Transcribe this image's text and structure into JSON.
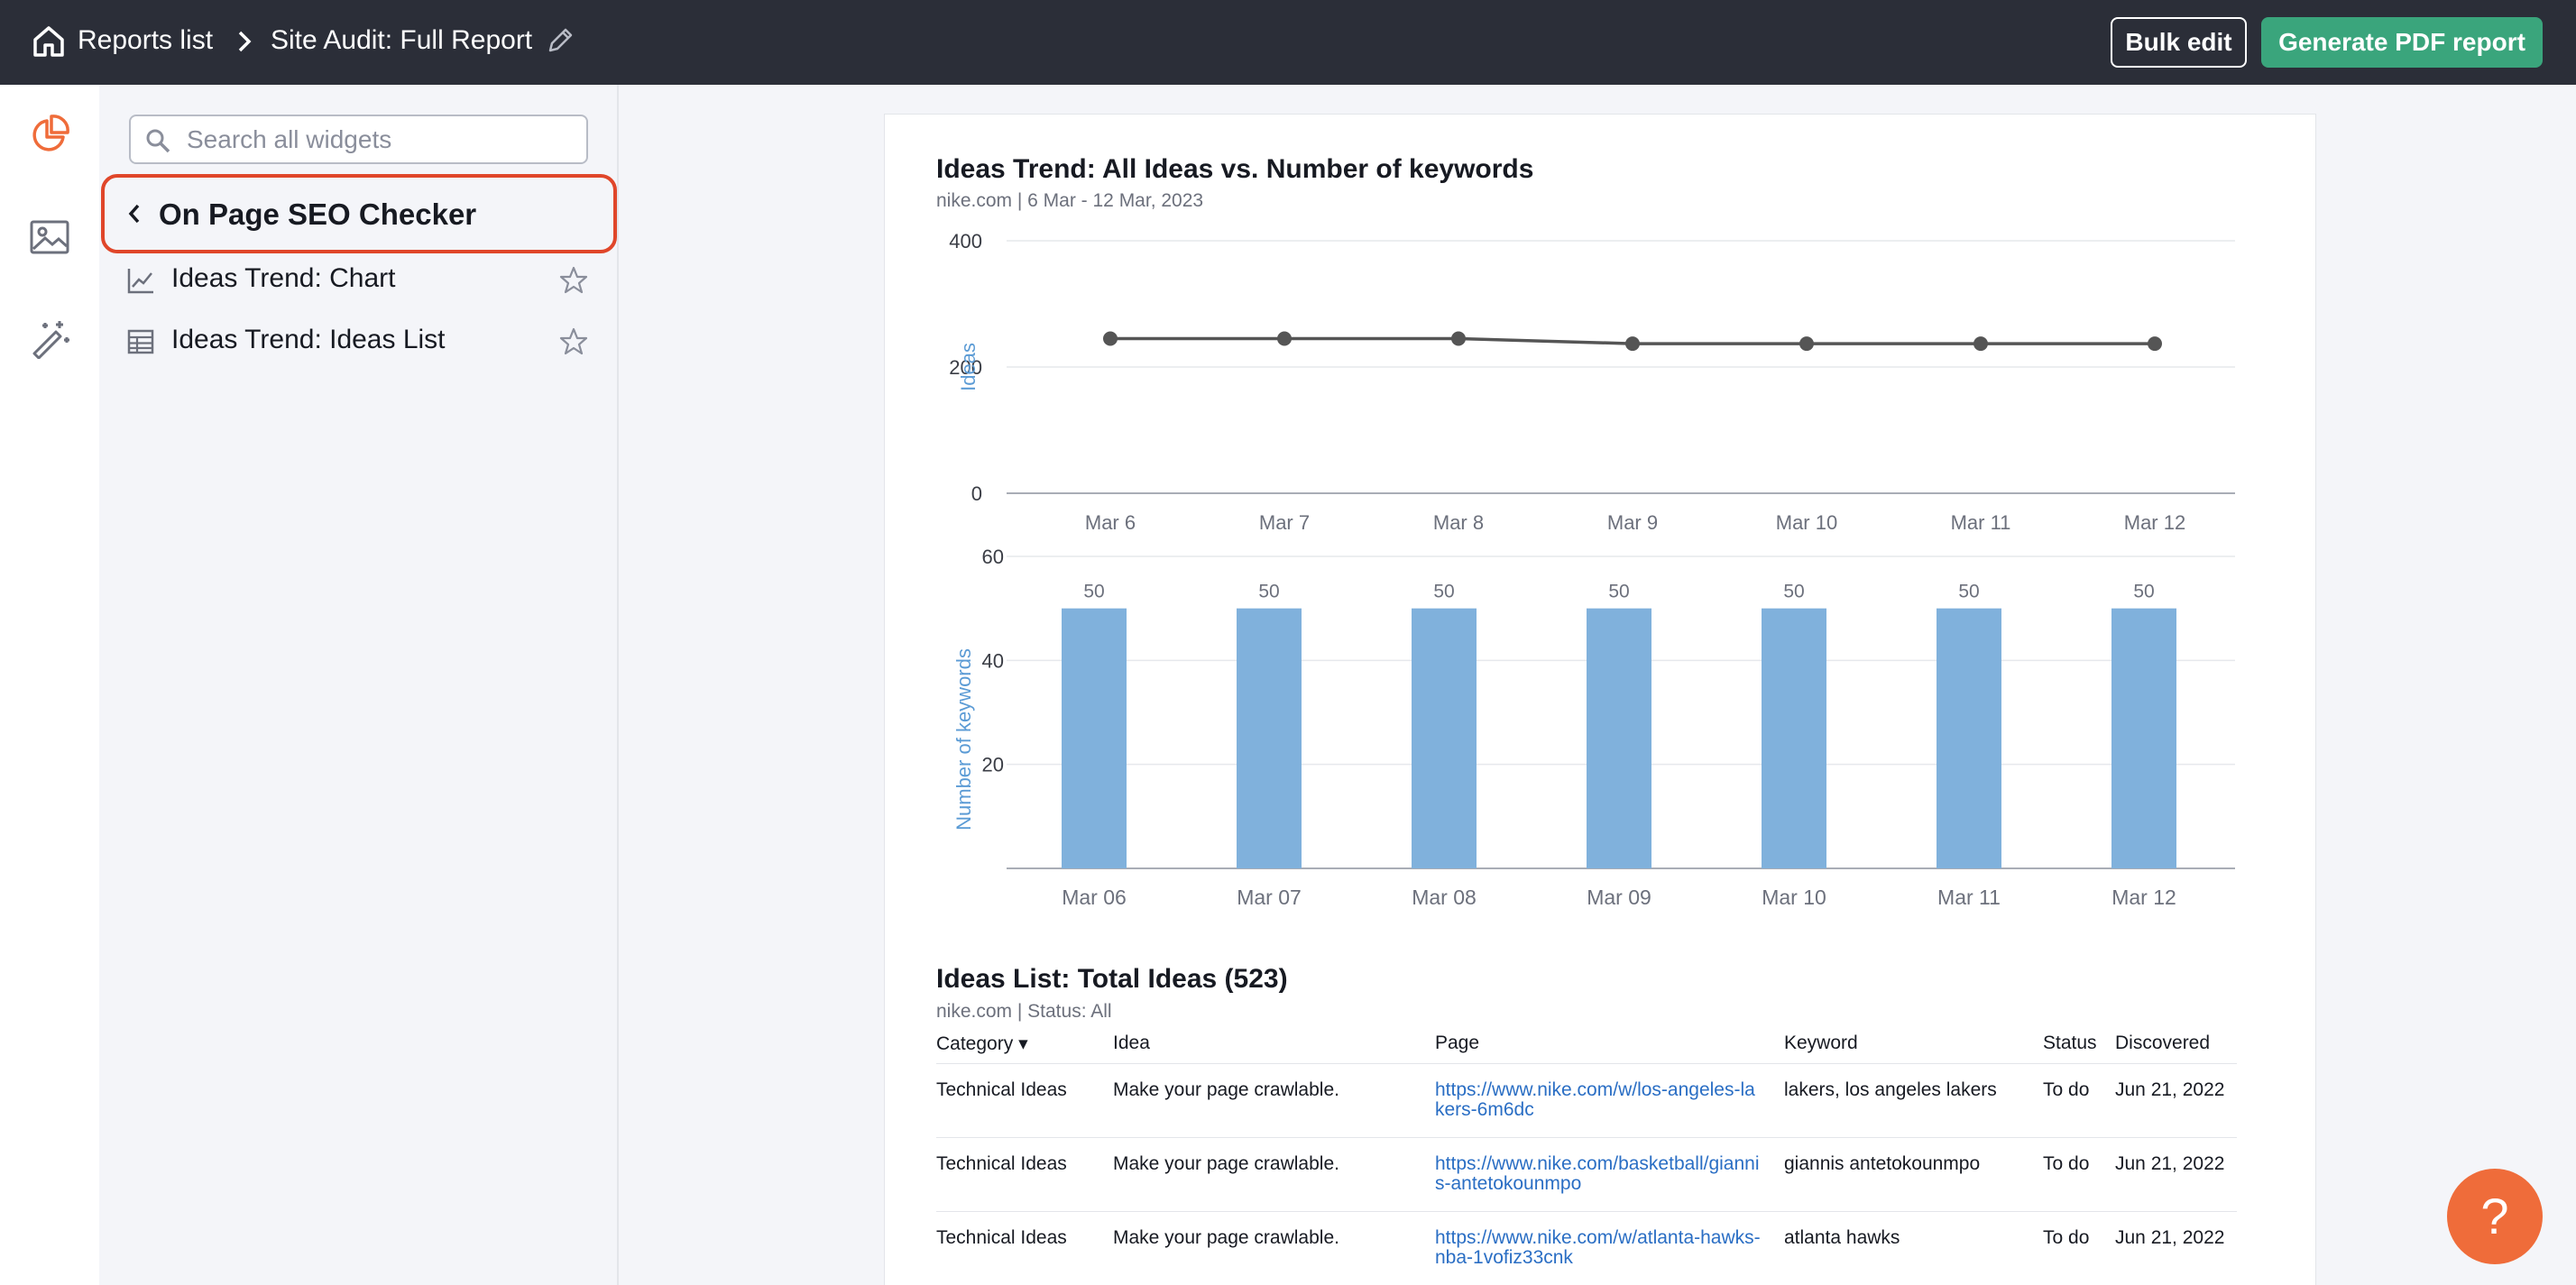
{
  "topbar": {
    "reports_list": "Reports list",
    "report_title": "Site Audit: Full Report",
    "bulk_edit": "Bulk edit",
    "generate_pdf": "Generate PDF report"
  },
  "sidebar": {
    "search_placeholder": "Search all widgets",
    "section_title": "On Page SEO Checker",
    "items": [
      {
        "label": "Ideas Trend: Chart",
        "icon": "line-chart-icon"
      },
      {
        "label": "Ideas Trend: Ideas List",
        "icon": "table-icon"
      }
    ]
  },
  "ideas_trend": {
    "title": "Ideas Trend: All Ideas vs. Number of keywords",
    "subtitle": "nike.com | 6 Mar - 12 Mar, 2023"
  },
  "chart_data": [
    {
      "type": "line",
      "ylabel": "Ideas",
      "categories": [
        "Mar 6",
        "Mar 7",
        "Mar 8",
        "Mar 9",
        "Mar 10",
        "Mar 11",
        "Mar 12"
      ],
      "values": [
        245,
        245,
        245,
        237,
        237,
        237,
        237
      ],
      "ylim": [
        0,
        400
      ],
      "yticks": [
        "0",
        "200",
        "400"
      ],
      "grid": true
    },
    {
      "type": "bar",
      "ylabel": "Number of keywords",
      "categories": [
        "Mar 06",
        "Mar 07",
        "Mar 08",
        "Mar 09",
        "Mar 10",
        "Mar 11",
        "Mar 12"
      ],
      "values": [
        50,
        50,
        50,
        50,
        50,
        50,
        50
      ],
      "ylim": [
        0,
        60
      ],
      "yticks": [
        "20",
        "40",
        "60"
      ],
      "grid": true
    }
  ],
  "ideas_list": {
    "title": "Ideas List: Total Ideas (523)",
    "subtitle": "nike.com | Status: All",
    "columns": [
      "Category",
      "Idea",
      "Page",
      "Keyword",
      "Status",
      "Discovered"
    ],
    "rows": [
      {
        "category": "Technical Ideas",
        "idea": "Make your page crawlable.",
        "page": "https://www.nike.com/w/los-angeles-lakers-6m6dc",
        "keyword": "lakers, los angeles lakers",
        "status": "To do",
        "discovered": "Jun 21, 2022"
      },
      {
        "category": "Technical Ideas",
        "idea": "Make your page crawlable.",
        "page": "https://www.nike.com/basketball/giannis-antetokounmpo",
        "keyword": "giannis antetokounmpo",
        "status": "To do",
        "discovered": "Jun 21, 2022"
      },
      {
        "category": "Technical Ideas",
        "idea": "Make your page crawlable.",
        "page": "https://www.nike.com/w/atlanta-hawks-nba-1vofiz33cnk",
        "keyword": "atlanta hawks",
        "status": "To do",
        "discovered": "Jun 21, 2022"
      }
    ]
  },
  "help": {
    "label": "?"
  },
  "colors": {
    "accent": "#ef6c3a",
    "pdf_button": "#3aa57c",
    "bar": "#80b1dc",
    "line": "#555555",
    "highlight": "#e0462a"
  }
}
